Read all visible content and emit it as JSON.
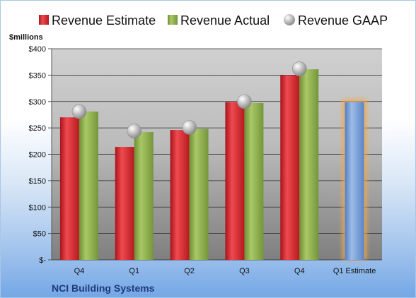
{
  "chart_data": {
    "type": "bar",
    "categories": [
      "Q4",
      "Q1",
      "Q2",
      "Q3",
      "Q4",
      "Q1 Estimate"
    ],
    "series": [
      {
        "name": "Revenue Estimate",
        "values": [
          270,
          214,
          246,
          299,
          350,
          null
        ],
        "color": "#d42027"
      },
      {
        "name": "Revenue Actual",
        "values": [
          281,
          242,
          248,
          297,
          361,
          null
        ],
        "color": "#8db04a"
      },
      {
        "name": "Revenue GAAP",
        "values": [
          281,
          244,
          251,
          300,
          362,
          null
        ],
        "color": "#b8b8b8"
      },
      {
        "name": "",
        "values": [
          null,
          null,
          null,
          null,
          null,
          299
        ],
        "color": "#6f98d4"
      }
    ],
    "ylabel": "$millions",
    "ylim": [
      0,
      400
    ],
    "yticks": [
      "$-",
      "$50",
      "$100",
      "$150",
      "$200",
      "$250",
      "$300",
      "$350",
      "$400"
    ],
    "grid": true,
    "legend": "top"
  },
  "footer": "NCI Building Systems"
}
